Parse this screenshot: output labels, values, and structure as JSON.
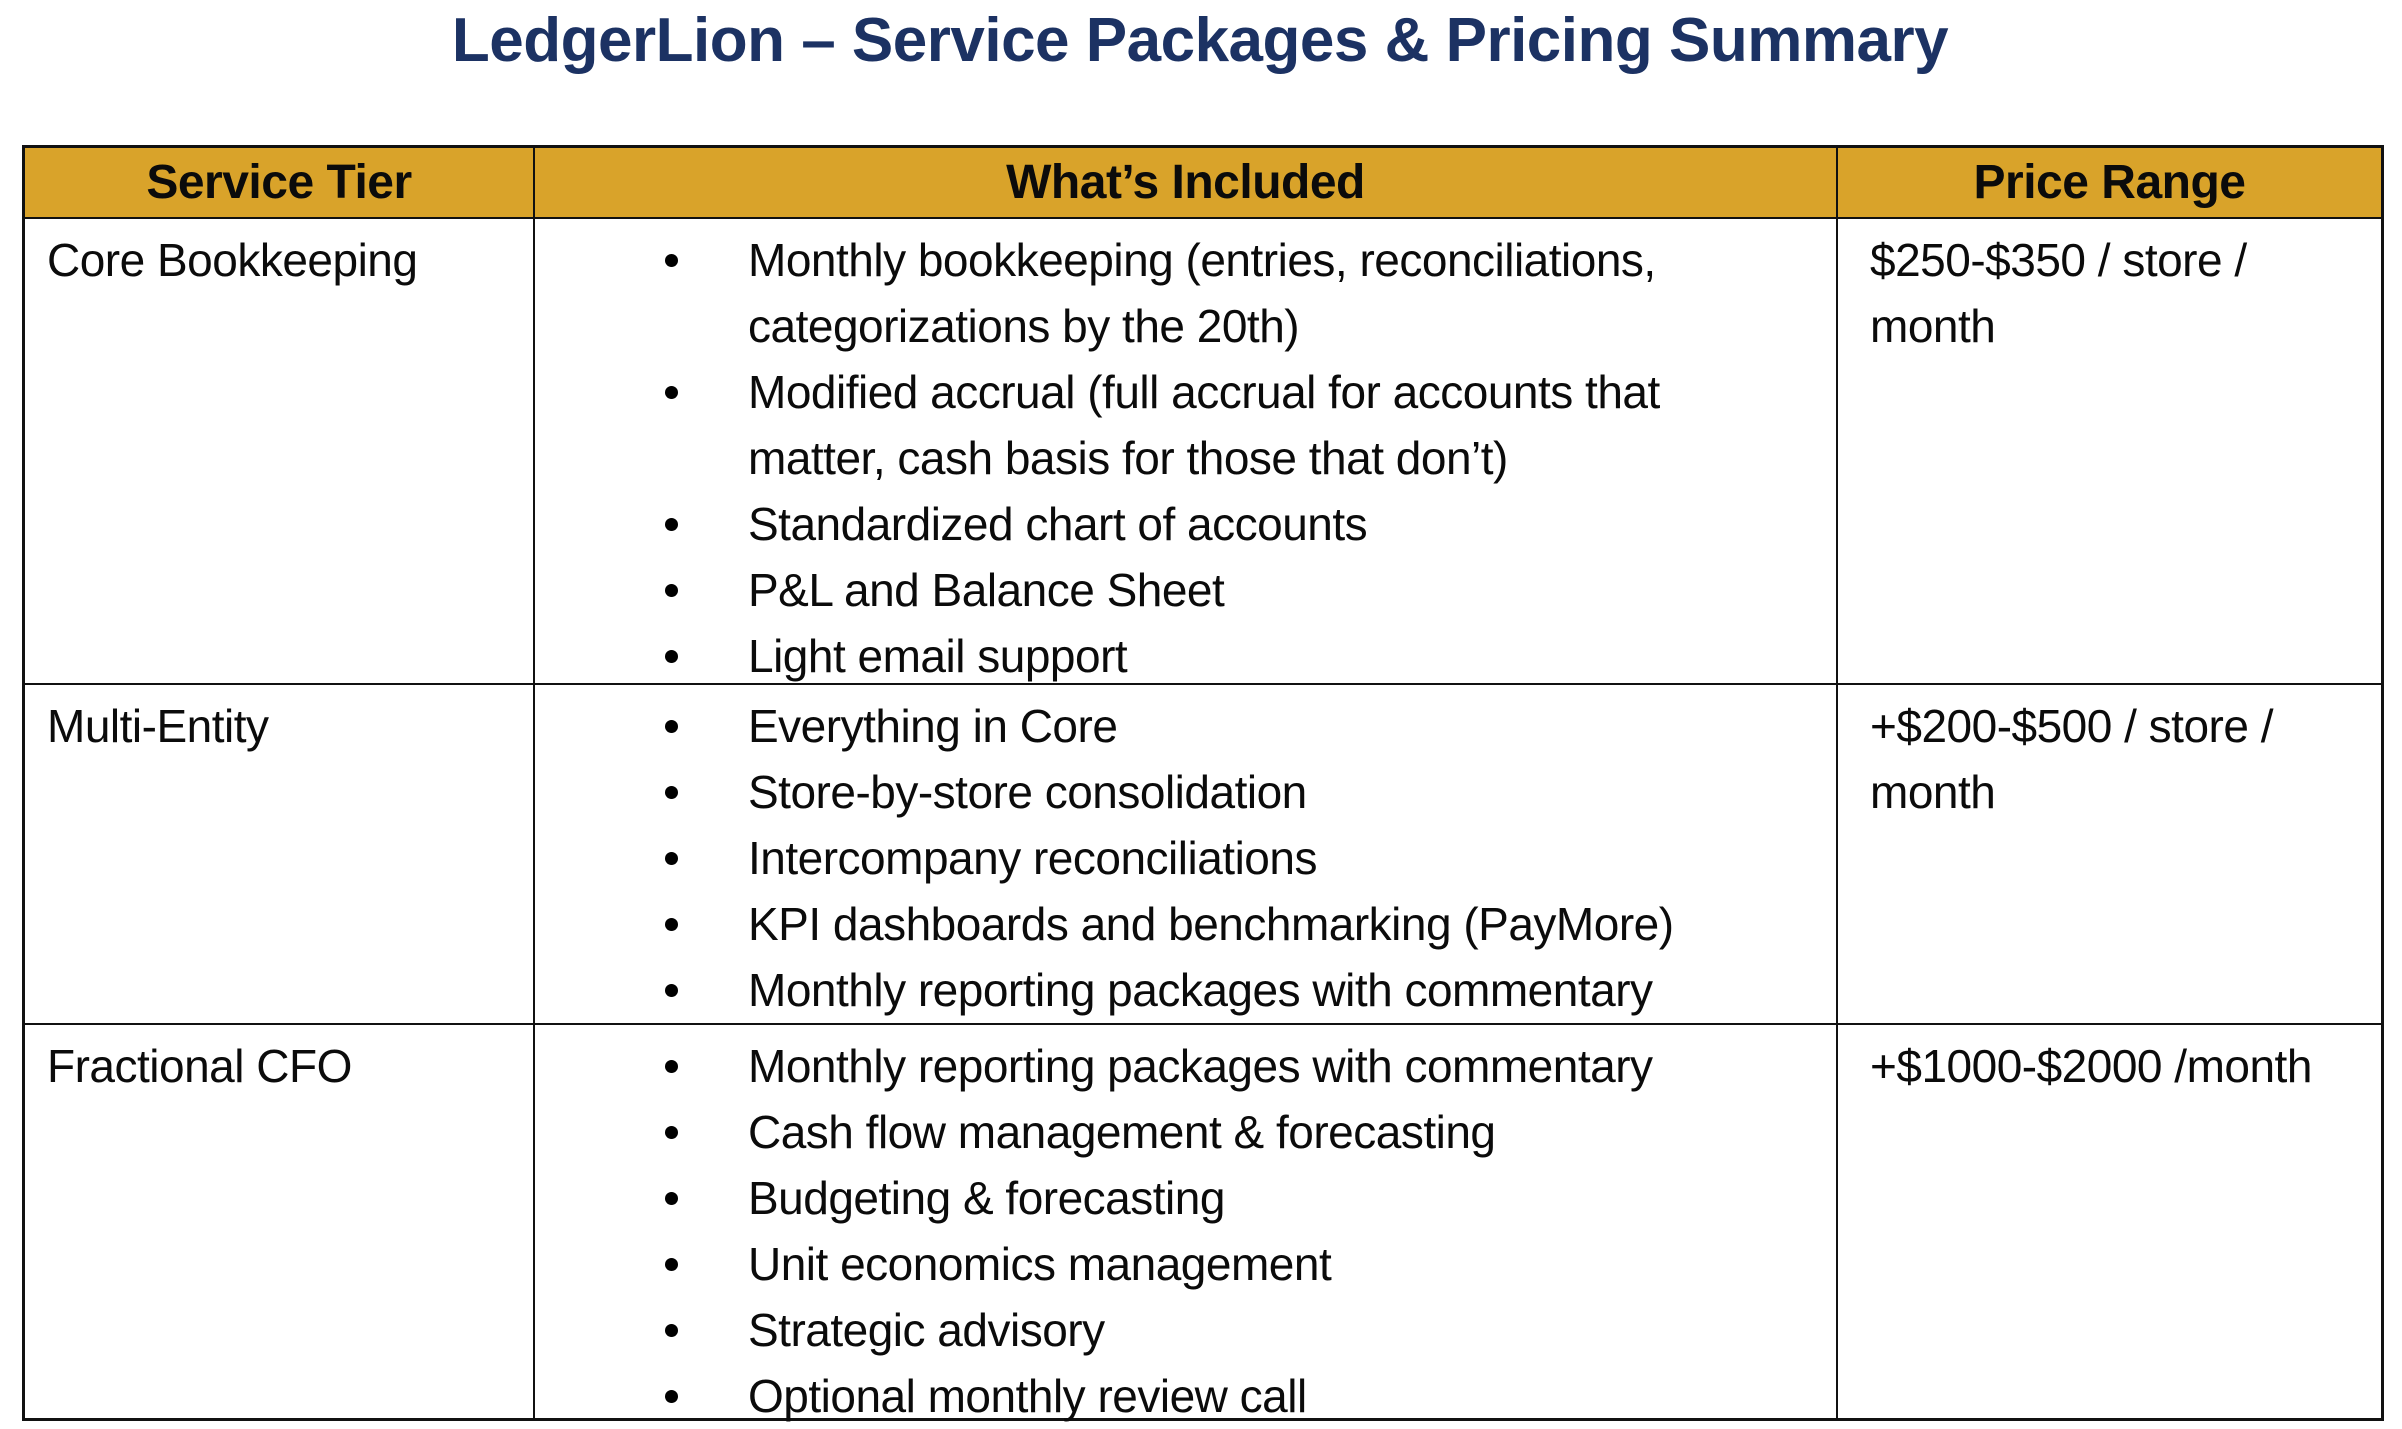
{
  "page": {
    "title": "LedgerLion – Service Packages & Pricing Summary"
  },
  "theme": {
    "header-bg": "#D9A32A",
    "title-color": "#1C3263",
    "border-color": "#111111",
    "text-color": "#0b0b0b"
  },
  "table": {
    "headers": [
      "Service Tier",
      "What’s Included",
      "Price Range"
    ],
    "rows": [
      {
        "tier": "Core Bookkeeping",
        "included": [
          "Monthly bookkeeping (entries, reconciliations, categorizations by the 20th)",
          "Modified accrual (full accrual for accounts that matter, cash basis for those that don’t)",
          "Standardized chart of accounts",
          "P&L and Balance Sheet",
          "Light email support"
        ],
        "price": "$250-$350 / store / month"
      },
      {
        "tier": "Multi-Entity",
        "included": [
          "Everything in Core",
          "Store-by-store consolidation",
          "Intercompany reconciliations",
          "KPI dashboards and benchmarking (PayMore)",
          "Monthly reporting packages with commentary"
        ],
        "price": "+$200-$500 / store / month"
      },
      {
        "tier": "Fractional CFO",
        "included": [
          "Monthly reporting packages with commentary",
          "Cash flow management & forecasting",
          "Budgeting & forecasting",
          "Unit economics management",
          "Strategic advisory",
          "Optional monthly review call"
        ],
        "price": "+$1000-$2000 /month"
      }
    ]
  }
}
